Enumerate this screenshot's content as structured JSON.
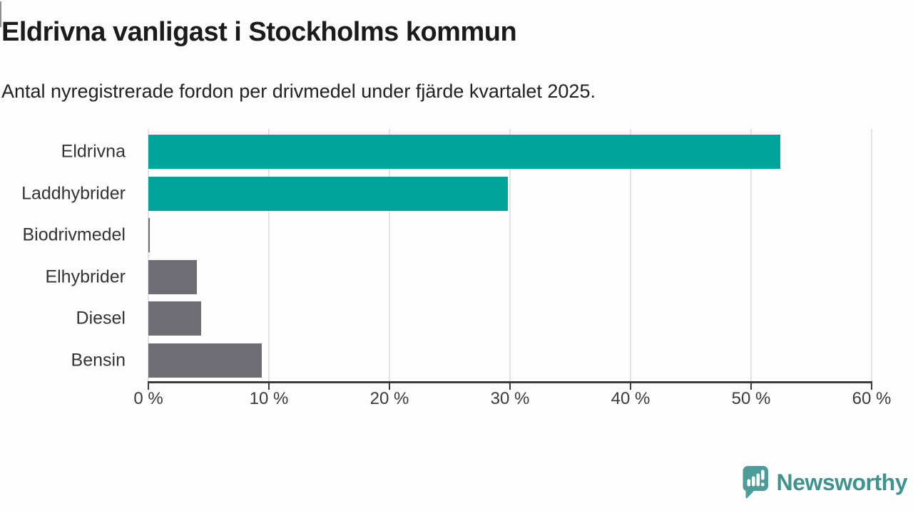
{
  "chart_data": {
    "type": "bar",
    "orientation": "horizontal",
    "title": "Eldrivna vanligast i Stockholms kommun",
    "subtitle": "Antal nyregistrerade fordon per drivmedel under fjärde kvartalet 2025.",
    "categories": [
      "Eldrivna",
      "Laddhybrider",
      "Biodrivmedel",
      "Elhybrider",
      "Diesel",
      "Bensin"
    ],
    "values": [
      52.4,
      29.8,
      0.1,
      4.0,
      4.4,
      9.4
    ],
    "unit": "%",
    "bar_colors": [
      "#00A49A",
      "#00A49A",
      "#6D6D73",
      "#6D6D73",
      "#6D6D73",
      "#6D6D73"
    ],
    "highlight_color": "#00A49A",
    "default_color": "#6D6D73",
    "xlim": [
      0,
      60
    ],
    "x_ticks": [
      0,
      10,
      20,
      30,
      40,
      50,
      60
    ],
    "x_tick_labels": [
      "0 %",
      "10 %",
      "20 %",
      "30 %",
      "40 %",
      "50 %",
      "60 %"
    ],
    "grid": "vertical",
    "legend": "none"
  },
  "footer": {
    "brand": "Newsworthy",
    "logo_icon": "speech-bubble-bar-chart-icon",
    "brand_color": "#3E938F",
    "logo_color": "#4C9D99"
  }
}
